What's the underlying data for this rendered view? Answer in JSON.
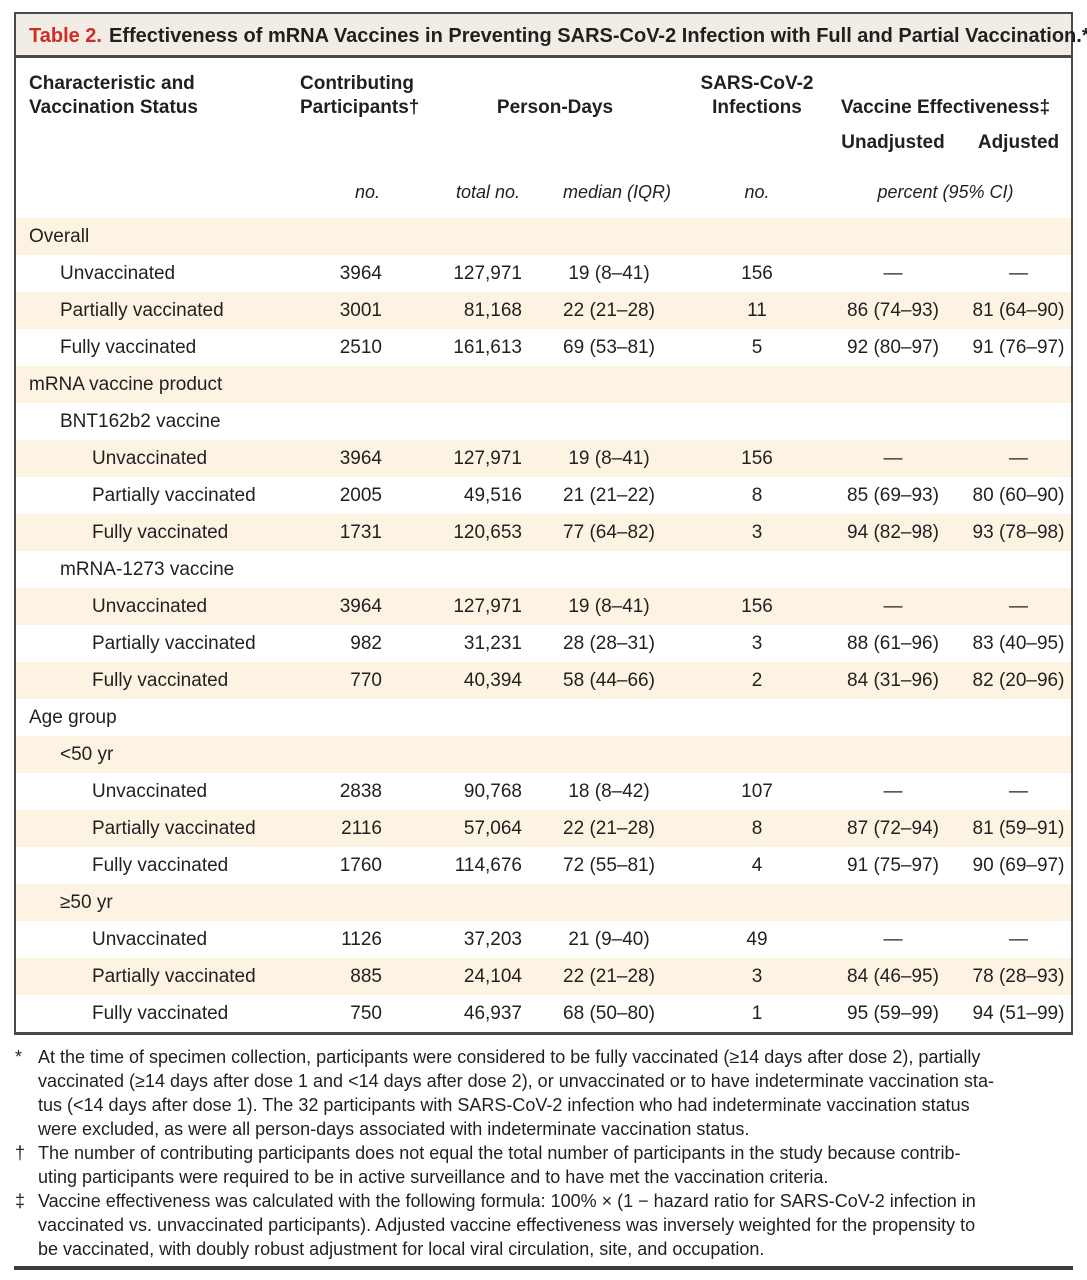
{
  "colors": {
    "accent_red": "#d22a27",
    "row_stripe": "#fcf3e3",
    "title_bar_bg": "#f1ede4",
    "border": "#4a4a4c",
    "text": "#231f20"
  },
  "title": {
    "label": "Table 2.",
    "text": "Effectiveness of mRNA Vaccines in Preventing SARS-CoV-2 Infection with Full and Partial Vaccination.*"
  },
  "table": {
    "header": {
      "characteristic_line1": "Characteristic and",
      "characteristic_line2": "Vaccination Status",
      "participants_line1": "Contributing",
      "participants_line2": "Participants†",
      "person_days": "Person-Days",
      "infections_line1": "SARS-CoV-2",
      "infections_line2": "Infections",
      "effectiveness": "Vaccine Effectiveness‡",
      "unadjusted": "Unadjusted",
      "adjusted": "Adjusted",
      "unit_no": "no.",
      "unit_total_no": "total no.",
      "unit_median": "median (IQR)",
      "unit_infections_no": "no.",
      "unit_percent": "percent (95% CI)"
    },
    "rows": [
      {
        "label": "Overall",
        "indent": 0,
        "section": true,
        "values": []
      },
      {
        "label": "Unvaccinated",
        "indent": 1,
        "section": false,
        "values": [
          "3964",
          "127,971",
          "19 (8–41)",
          "156",
          "—",
          "—"
        ]
      },
      {
        "label": "Partially vaccinated",
        "indent": 1,
        "section": false,
        "values": [
          "3001",
          "81,168",
          "22 (21–28)",
          "11",
          "86 (74–93)",
          "81 (64–90)"
        ]
      },
      {
        "label": "Fully vaccinated",
        "indent": 1,
        "section": false,
        "values": [
          "2510",
          "161,613",
          "69 (53–81)",
          "5",
          "92 (80–97)",
          "91 (76–97)"
        ]
      },
      {
        "label": "mRNA vaccine product",
        "indent": 0,
        "section": true,
        "values": []
      },
      {
        "label": "BNT162b2 vaccine",
        "indent": 1,
        "section": true,
        "values": []
      },
      {
        "label": "Unvaccinated",
        "indent": 2,
        "section": false,
        "values": [
          "3964",
          "127,971",
          "19 (8–41)",
          "156",
          "—",
          "—"
        ]
      },
      {
        "label": "Partially vaccinated",
        "indent": 2,
        "section": false,
        "values": [
          "2005",
          "49,516",
          "21 (21–22)",
          "8",
          "85 (69–93)",
          "80 (60–90)"
        ]
      },
      {
        "label": "Fully vaccinated",
        "indent": 2,
        "section": false,
        "values": [
          "1731",
          "120,653",
          "77 (64–82)",
          "3",
          "94 (82–98)",
          "93 (78–98)"
        ]
      },
      {
        "label": "mRNA-1273 vaccine",
        "indent": 1,
        "section": true,
        "values": []
      },
      {
        "label": "Unvaccinated",
        "indent": 2,
        "section": false,
        "values": [
          "3964",
          "127,971",
          "19 (8–41)",
          "156",
          "—",
          "—"
        ]
      },
      {
        "label": "Partially vaccinated",
        "indent": 2,
        "section": false,
        "values": [
          "982",
          "31,231",
          "28 (28–31)",
          "3",
          "88 (61–96)",
          "83 (40–95)"
        ]
      },
      {
        "label": "Fully vaccinated",
        "indent": 2,
        "section": false,
        "values": [
          "770",
          "40,394",
          "58 (44–66)",
          "2",
          "84 (31–96)",
          "82 (20–96)"
        ]
      },
      {
        "label": "Age group",
        "indent": 0,
        "section": true,
        "values": []
      },
      {
        "label": "<50 yr",
        "indent": 1,
        "section": true,
        "values": []
      },
      {
        "label": "Unvaccinated",
        "indent": 2,
        "section": false,
        "values": [
          "2838",
          "90,768",
          "18 (8–42)",
          "107",
          "—",
          "—"
        ]
      },
      {
        "label": "Partially vaccinated",
        "indent": 2,
        "section": false,
        "values": [
          "2116",
          "57,064",
          "22 (21–28)",
          "8",
          "87 (72–94)",
          "81 (59–91)"
        ]
      },
      {
        "label": "Fully vaccinated",
        "indent": 2,
        "section": false,
        "values": [
          "1760",
          "114,676",
          "72 (55–81)",
          "4",
          "91 (75–97)",
          "90 (69–97)"
        ]
      },
      {
        "label": "≥50 yr",
        "indent": 1,
        "section": true,
        "values": []
      },
      {
        "label": "Unvaccinated",
        "indent": 2,
        "section": false,
        "values": [
          "1126",
          "37,203",
          "21 (9–40)",
          "49",
          "—",
          "—"
        ]
      },
      {
        "label": "Partially vaccinated",
        "indent": 2,
        "section": false,
        "values": [
          "885",
          "24,104",
          "22 (21–28)",
          "3",
          "84 (46–95)",
          "78 (28–93)"
        ]
      },
      {
        "label": "Fully vaccinated",
        "indent": 2,
        "section": false,
        "values": [
          "750",
          "46,937",
          "68 (50–80)",
          "1",
          "95 (59–99)",
          "94 (51–99)"
        ]
      }
    ]
  },
  "footnotes": [
    {
      "marker": "*",
      "lines": [
        "At the time of specimen collection, participants were considered to be fully vaccinated (≥14 days after dose 2), partially",
        "vaccinated (≥14 days after dose 1 and <14 days after dose 2), or unvaccinated or to have indeterminate vaccination sta-",
        "tus (<14 days after dose 1). The 32 participants with SARS-CoV-2 infection who had indeterminate vaccination status",
        "were excluded, as were all person-days associated with indeterminate vaccination status."
      ]
    },
    {
      "marker": "†",
      "lines": [
        "The number of contributing participants does not equal the total number of participants in the study because contrib-",
        "uting participants were required to be in active surveillance and to have met the vaccination criteria."
      ]
    },
    {
      "marker": "‡",
      "lines": [
        "Vaccine effectiveness was calculated with the following formula: 100% × (1 − hazard ratio for SARS-CoV-2 infection in",
        "vaccinated vs. unvaccinated participants). Adjusted vaccine effectiveness was inversely weighted for the propensity to",
        "be vaccinated, with doubly robust adjustment for local viral circulation, site, and occupation."
      ]
    }
  ]
}
